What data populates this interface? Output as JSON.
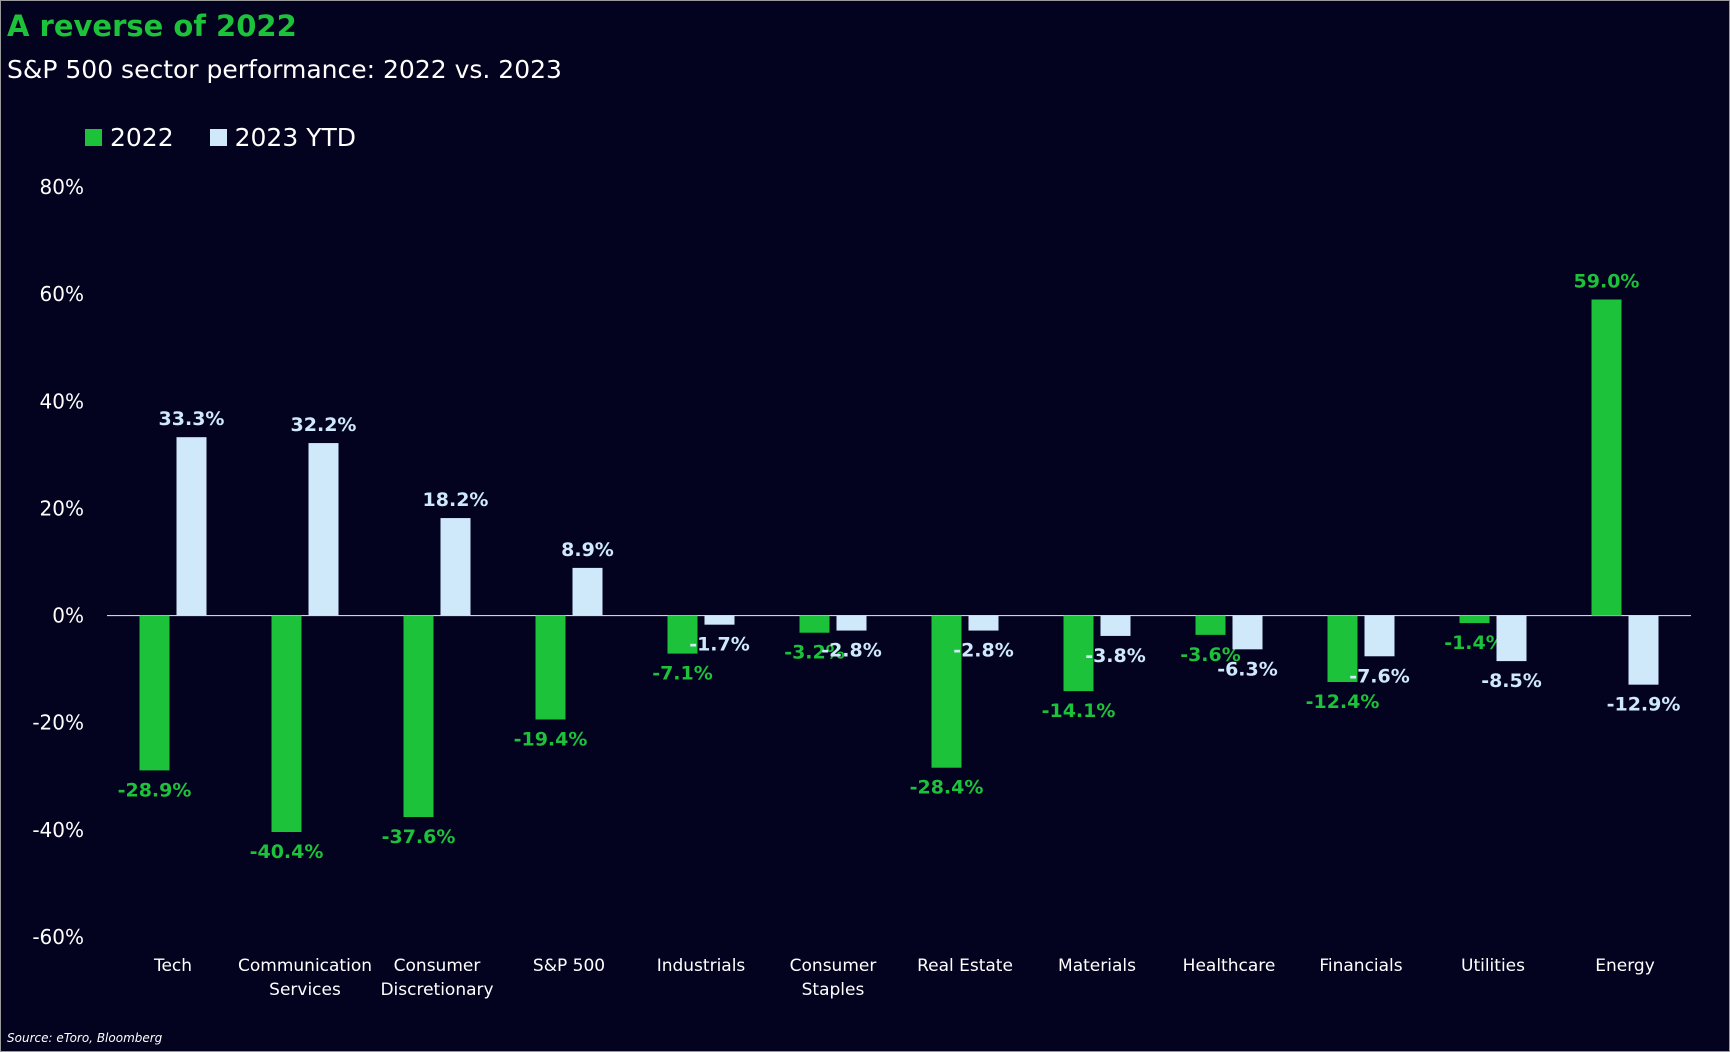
{
  "title": "A reverse of 2022",
  "subtitle": "S&P 500 sector performance: 2022 vs. 2023",
  "source": "Source: eToro, Bloomberg",
  "colors": {
    "background": "#03031f",
    "series_2022": "#1cc23a",
    "series_2023": "#cfe9fb",
    "text": "#ffffff"
  },
  "chart_data": {
    "type": "bar",
    "categories": [
      [
        "Tech"
      ],
      [
        "Communication",
        "Services"
      ],
      [
        "Consumer",
        "Discretionary"
      ],
      [
        "S&P 500"
      ],
      [
        "Industrials"
      ],
      [
        "Consumer",
        "Staples"
      ],
      [
        "Real Estate"
      ],
      [
        "Materials"
      ],
      [
        "Healthcare"
      ],
      [
        "Financials"
      ],
      [
        "Utilities"
      ],
      [
        "Energy"
      ]
    ],
    "series": [
      {
        "name": "2022",
        "values": [
          -28.9,
          -40.4,
          -37.6,
          -19.4,
          -7.1,
          -3.2,
          -28.4,
          -14.1,
          -3.6,
          -12.4,
          -1.4,
          59.0
        ],
        "labels": [
          "-28.9%",
          "-40.4%",
          "-37.6%",
          "-19.4%",
          "-7.1%",
          "-3.2%",
          "-28.4%",
          "-14.1%",
          "-3.6%",
          "-12.4%",
          "-1.4%",
          "59.0%"
        ]
      },
      {
        "name": "2023 YTD",
        "values": [
          33.3,
          32.2,
          18.2,
          8.9,
          -1.7,
          -2.8,
          -2.8,
          -3.8,
          -6.3,
          -7.6,
          -8.5,
          -12.9
        ],
        "labels": [
          "33.3%",
          "32.2%",
          "18.2%",
          "8.9%",
          "-1.7%",
          "-2.8%",
          "-2.8%",
          "-3.8%",
          "-6.3%",
          "-7.6%",
          "-8.5%",
          "-12.9%"
        ]
      }
    ],
    "yticks": [
      80,
      60,
      40,
      20,
      0,
      -20,
      -40,
      -60
    ],
    "ytick_labels": [
      "80%",
      "60%",
      "40%",
      "20%",
      "0%",
      "-20%",
      "-40%",
      "-60%"
    ],
    "ylim": [
      -60,
      80
    ],
    "grid": false,
    "legend_position": "top-left"
  }
}
